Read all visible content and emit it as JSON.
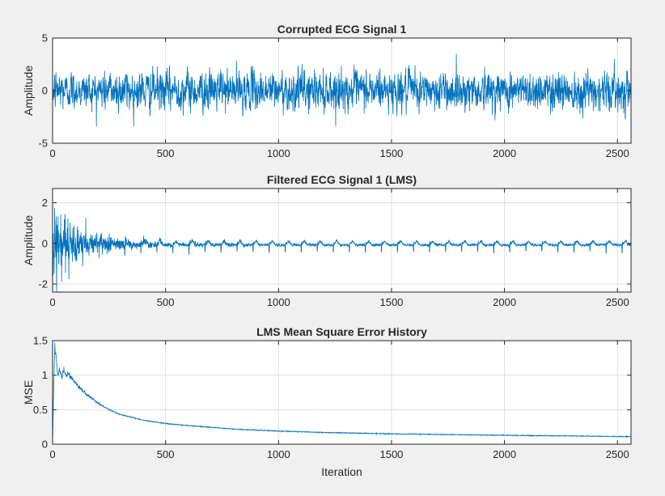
{
  "chart_data": [
    {
      "type": "line",
      "title": "Corrupted ECG Signal 1",
      "xlabel": "",
      "ylabel": "Amplitude",
      "xlim": [
        0,
        2560
      ],
      "ylim": [
        -5,
        5
      ],
      "xticks": [
        0,
        500,
        1000,
        1500,
        2000,
        2500
      ],
      "yticks": [
        -5,
        0,
        5
      ],
      "xtick_labels": [
        "0",
        "500",
        "1000",
        "1500",
        "2000",
        "2500"
      ],
      "ytick_labels": [
        "-5",
        "0",
        "5"
      ],
      "grid": true,
      "color": "#0072bd",
      "signal": {
        "n": 2560,
        "kind": "noisy_ecg",
        "noise_std": 1.15,
        "ecg_amp": 0.6,
        "clip": [
          -3.4,
          4.1
        ]
      }
    },
    {
      "type": "line",
      "title": "Filtered ECG Signal 1 (LMS)",
      "xlabel": "",
      "ylabel": "Amplitude",
      "xlim": [
        0,
        2560
      ],
      "ylim": [
        -2.4,
        2.7
      ],
      "xticks": [
        0,
        500,
        1000,
        1500,
        2000,
        2500
      ],
      "yticks": [
        -2,
        0,
        2
      ],
      "xtick_labels": [
        "0",
        "500",
        "1000",
        "1500",
        "2000",
        "2500"
      ],
      "ytick_labels": [
        "-2",
        "0",
        "2"
      ],
      "grid": true,
      "color": "#0072bd",
      "signal": {
        "n": 2560,
        "kind": "lms_filtered",
        "beat_period": 71,
        "spike_depth": -0.75,
        "clip": [
          -2.4,
          2.7
        ]
      }
    },
    {
      "type": "line",
      "title": "LMS Mean Square Error History",
      "xlabel": "Iteration",
      "ylabel": "MSE",
      "xlim": [
        0,
        2560
      ],
      "ylim": [
        0,
        1.5
      ],
      "xticks": [
        0,
        500,
        1000,
        1500,
        2000,
        2500
      ],
      "yticks": [
        0,
        0.5,
        1,
        1.5
      ],
      "xtick_labels": [
        "0",
        "500",
        "1000",
        "1500",
        "2000",
        "2500"
      ],
      "ytick_labels": [
        "0",
        "0.5",
        "1",
        "1.5"
      ],
      "grid": true,
      "color": "#0072bd",
      "mse": {
        "x": [
          0,
          5,
          10,
          15,
          20,
          25,
          30,
          40,
          50,
          60,
          70,
          80,
          90,
          100,
          120,
          150,
          200,
          250,
          300,
          400,
          500,
          600,
          800,
          1000,
          1200,
          1500,
          2000,
          2560
        ],
        "y": [
          0.0,
          0.85,
          1.42,
          1.3,
          1.05,
          1.0,
          1.1,
          0.98,
          1.08,
          1.0,
          1.02,
          0.96,
          0.94,
          0.9,
          0.82,
          0.72,
          0.6,
          0.5,
          0.43,
          0.35,
          0.3,
          0.27,
          0.22,
          0.19,
          0.17,
          0.15,
          0.13,
          0.11
        ]
      }
    }
  ]
}
